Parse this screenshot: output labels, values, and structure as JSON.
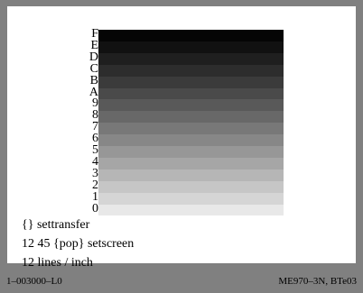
{
  "gray_ramp": {
    "labels": [
      "F",
      "E",
      "D",
      "C",
      "B",
      "A",
      "9",
      "8",
      "7",
      "6",
      "5",
      "4",
      "3",
      "2",
      "1",
      "0"
    ],
    "swatch_colors": [
      "#050505",
      "#111111",
      "#1f1f1f",
      "#2d2d2d",
      "#3b3b3b",
      "#4a4a4a",
      "#595959",
      "#686868",
      "#787878",
      "#878787",
      "#979797",
      "#a6a6a6",
      "#b6b6b6",
      "#c6c6c6",
      "#d5d5d5",
      "#e8e8e8"
    ]
  },
  "code_lines": [
    "{} settransfer",
    "12 45 {pop} setscreen",
    "12 lines / inch"
  ],
  "footer": {
    "left": "1–003000–L0",
    "right": "ME970–3N, BTe03"
  }
}
